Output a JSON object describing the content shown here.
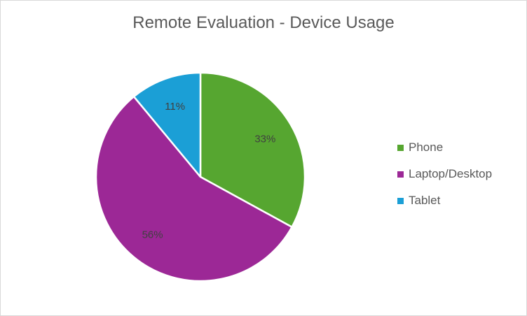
{
  "chart_data": {
    "type": "pie",
    "title": "Remote Evaluation - Device Usage",
    "categories": [
      "Phone",
      "Laptop/Desktop",
      "Tablet"
    ],
    "values": [
      33,
      56,
      11
    ],
    "data_labels": [
      "33%",
      "56%",
      "11%"
    ],
    "colors": [
      "#56a630",
      "#9c2896",
      "#1b9fd6"
    ],
    "legend_position": "right"
  }
}
